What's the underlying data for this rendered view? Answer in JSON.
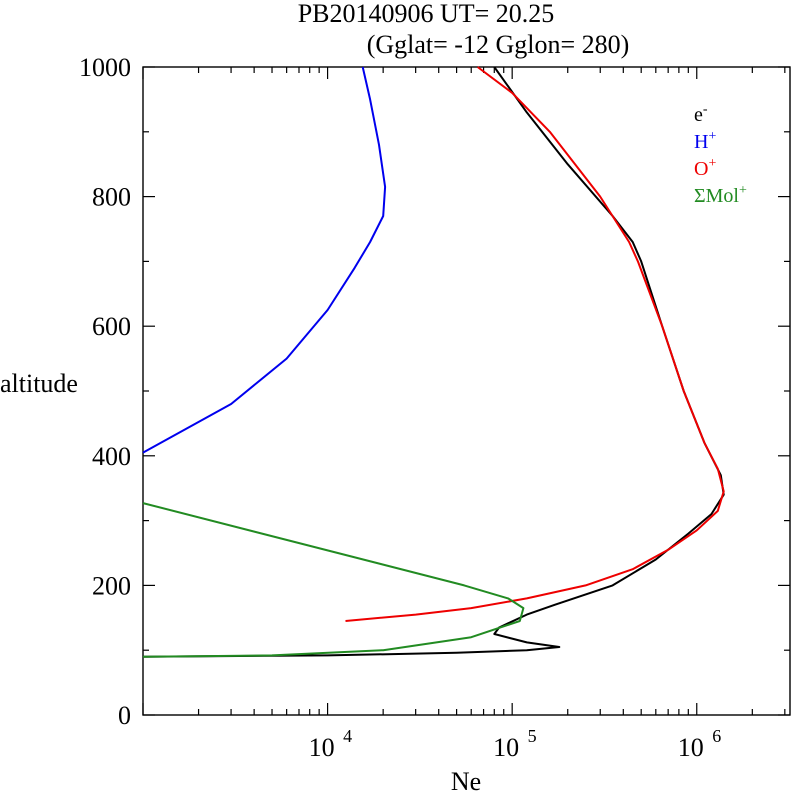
{
  "chart_data": {
    "type": "line",
    "title": "PB20140906   UT=  20.25",
    "subtitle": "(Gglat= -12   Gglon=  280)",
    "xlabel": "Ne",
    "ylabel": "altitude",
    "xscale": "log",
    "xlim": [
      1000,
      3200000
    ],
    "ylim": [
      0,
      1000
    ],
    "yticks": [
      0,
      200,
      400,
      600,
      800,
      1000
    ],
    "xticks": [
      {
        "base": "10",
        "exp": "4",
        "value": 10000
      },
      {
        "base": "10",
        "exp": "5",
        "value": 100000
      },
      {
        "base": "10",
        "exp": "6",
        "value": 1000000
      }
    ],
    "legend_position": "top-right",
    "series": [
      {
        "name": "e",
        "sup": "-",
        "color": "#000000",
        "points": [
          [
            1000,
            90
          ],
          [
            10000,
            92
          ],
          [
            50000,
            96
          ],
          [
            120000,
            100
          ],
          [
            180000,
            105
          ],
          [
            120000,
            112
          ],
          [
            80000,
            125
          ],
          [
            85000,
            135
          ],
          [
            120000,
            155
          ],
          [
            170000,
            170
          ],
          [
            350000,
            200
          ],
          [
            600000,
            240
          ],
          [
            900000,
            280
          ],
          [
            1200000,
            310
          ],
          [
            1400000,
            340
          ],
          [
            1350000,
            370
          ],
          [
            1100000,
            420
          ],
          [
            850000,
            500
          ],
          [
            650000,
            600
          ],
          [
            500000,
            700
          ],
          [
            450000,
            730
          ],
          [
            350000,
            770
          ],
          [
            200000,
            850
          ],
          [
            120000,
            930
          ],
          [
            80000,
            1000
          ]
        ]
      },
      {
        "name": "H",
        "sup": "+",
        "color": "#0000ee",
        "points": [
          [
            1000,
            405
          ],
          [
            3000,
            480
          ],
          [
            6000,
            550
          ],
          [
            10000,
            625
          ],
          [
            14000,
            690
          ],
          [
            17000,
            730
          ],
          [
            20000,
            770
          ],
          [
            20500,
            815
          ],
          [
            19000,
            880
          ],
          [
            17000,
            950
          ],
          [
            15500,
            1000
          ]
        ]
      },
      {
        "name": "O",
        "sup": "+",
        "color": "#ee0000",
        "points": [
          [
            12500,
            145
          ],
          [
            30000,
            155
          ],
          [
            60000,
            165
          ],
          [
            120000,
            180
          ],
          [
            250000,
            200
          ],
          [
            450000,
            225
          ],
          [
            700000,
            255
          ],
          [
            1000000,
            285
          ],
          [
            1300000,
            315
          ],
          [
            1400000,
            345
          ],
          [
            1300000,
            380
          ],
          [
            1100000,
            420
          ],
          [
            850000,
            500
          ],
          [
            650000,
            600
          ],
          [
            480000,
            700
          ],
          [
            430000,
            730
          ],
          [
            300000,
            800
          ],
          [
            160000,
            900
          ],
          [
            100000,
            960
          ],
          [
            65000,
            1000
          ]
        ]
      },
      {
        "name": "ΣMol",
        "sup": "+",
        "color": "#228b22",
        "points": [
          [
            1000,
            327
          ],
          [
            55000,
            200
          ],
          [
            95000,
            180
          ],
          [
            115000,
            165
          ],
          [
            110000,
            145
          ],
          [
            60000,
            120
          ],
          [
            20000,
            100
          ],
          [
            5000,
            92
          ],
          [
            1000,
            90
          ]
        ]
      }
    ]
  }
}
